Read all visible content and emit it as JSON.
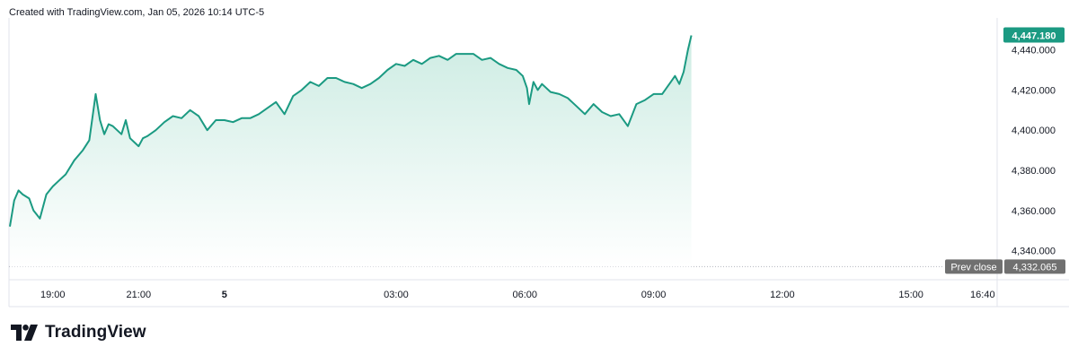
{
  "caption": "Created with TradingView.com, Jan 05, 2026 10:14 UTC-5",
  "brand": {
    "name": "TradingView",
    "logo_icon": "tradingview-logo-icon"
  },
  "colors": {
    "line": "#1b9a82",
    "fill_top": "#cdece3",
    "fill_bottom": "#ffffff",
    "price_badge": "#1b9a82",
    "prev_badge": "#707070",
    "prev_line": "#b2b5be"
  },
  "chart_data": {
    "type": "area",
    "title": "",
    "xlabel": "",
    "ylabel": "",
    "x_ticks": [
      {
        "label": "19:00",
        "t": 1
      },
      {
        "label": "21:00",
        "t": 3
      },
      {
        "label": "5",
        "t": 5
      },
      {
        "label": "03:00",
        "t": 9
      },
      {
        "label": "06:00",
        "t": 12
      },
      {
        "label": "09:00",
        "t": 15
      },
      {
        "label": "12:00",
        "t": 18
      },
      {
        "label": "15:00",
        "t": 21
      },
      {
        "label": "16:40",
        "t": 22.667
      }
    ],
    "x_range_hours": [
      0,
      23.8
    ],
    "y_ticks": [
      {
        "label": "4,340.000",
        "v": 4340
      },
      {
        "label": "4,360.000",
        "v": 4360
      },
      {
        "label": "4,380.000",
        "v": 4380
      },
      {
        "label": "4,400.000",
        "v": 4400
      },
      {
        "label": "4,420.000",
        "v": 4420
      },
      {
        "label": "4,440.000",
        "v": 4440
      }
    ],
    "ylim": [
      4330,
      4455
    ],
    "last_price": {
      "label": "4,447.180",
      "v": 4447.18
    },
    "prev_close": {
      "name": "Prev close",
      "label": "4,332.065",
      "v": 4332.065
    },
    "series": [
      {
        "x": [
          0.0,
          0.1,
          0.2,
          0.3,
          0.45,
          0.55,
          0.7,
          0.85,
          1.0,
          1.15,
          1.3,
          1.5,
          1.7,
          1.85,
          2.0,
          2.1,
          2.2,
          2.3,
          2.4,
          2.5,
          2.6,
          2.7,
          2.8,
          2.9,
          3.0,
          3.1,
          3.2,
          3.4,
          3.6,
          3.8,
          4.0,
          4.2,
          4.4,
          4.6,
          4.8,
          5.0,
          5.2,
          5.4,
          5.6,
          5.8,
          6.0,
          6.2,
          6.4,
          6.6,
          6.8,
          7.0,
          7.2,
          7.4,
          7.6,
          7.8,
          8.0,
          8.2,
          8.4,
          8.6,
          8.8,
          9.0,
          9.2,
          9.4,
          9.6,
          9.8,
          10.0,
          10.2,
          10.4,
          10.6,
          10.8,
          11.0,
          11.2,
          11.4,
          11.6,
          11.8,
          11.95,
          12.05,
          12.1,
          12.2,
          12.3,
          12.4,
          12.6,
          12.8,
          13.0,
          13.2,
          13.4,
          13.6,
          13.8,
          14.0,
          14.2,
          14.4,
          14.6,
          14.8,
          15.0,
          15.2,
          15.4,
          15.5,
          15.6,
          15.7,
          15.8,
          15.88
        ],
        "values": [
          4352,
          4365,
          4370,
          4368,
          4366,
          4360,
          4356,
          4368,
          4372,
          4375,
          4378,
          4385,
          4390,
          4395,
          4418,
          4405,
          4398,
          4403,
          4402,
          4400,
          4398,
          4405,
          4396,
          4394,
          4392,
          4396,
          4397,
          4400,
          4404,
          4407,
          4406,
          4410,
          4407,
          4400,
          4405,
          4405,
          4404,
          4406,
          4406,
          4408,
          4411,
          4414,
          4408,
          4417,
          4420,
          4424,
          4422,
          4426,
          4426,
          4424,
          4423,
          4421,
          4423,
          4426,
          4430,
          4433,
          4432,
          4435,
          4433,
          4436,
          4437,
          4435,
          4438,
          4438,
          4438,
          4435,
          4436,
          4433,
          4431,
          4430,
          4427,
          4421,
          4413,
          4424,
          4420,
          4423,
          4419,
          4418,
          4416,
          4412,
          4408,
          4413,
          4409,
          4407,
          4408,
          4402,
          4413,
          4415,
          4418,
          4418,
          4424,
          4427,
          4423,
          4429,
          4440,
          4447.18
        ]
      }
    ]
  }
}
